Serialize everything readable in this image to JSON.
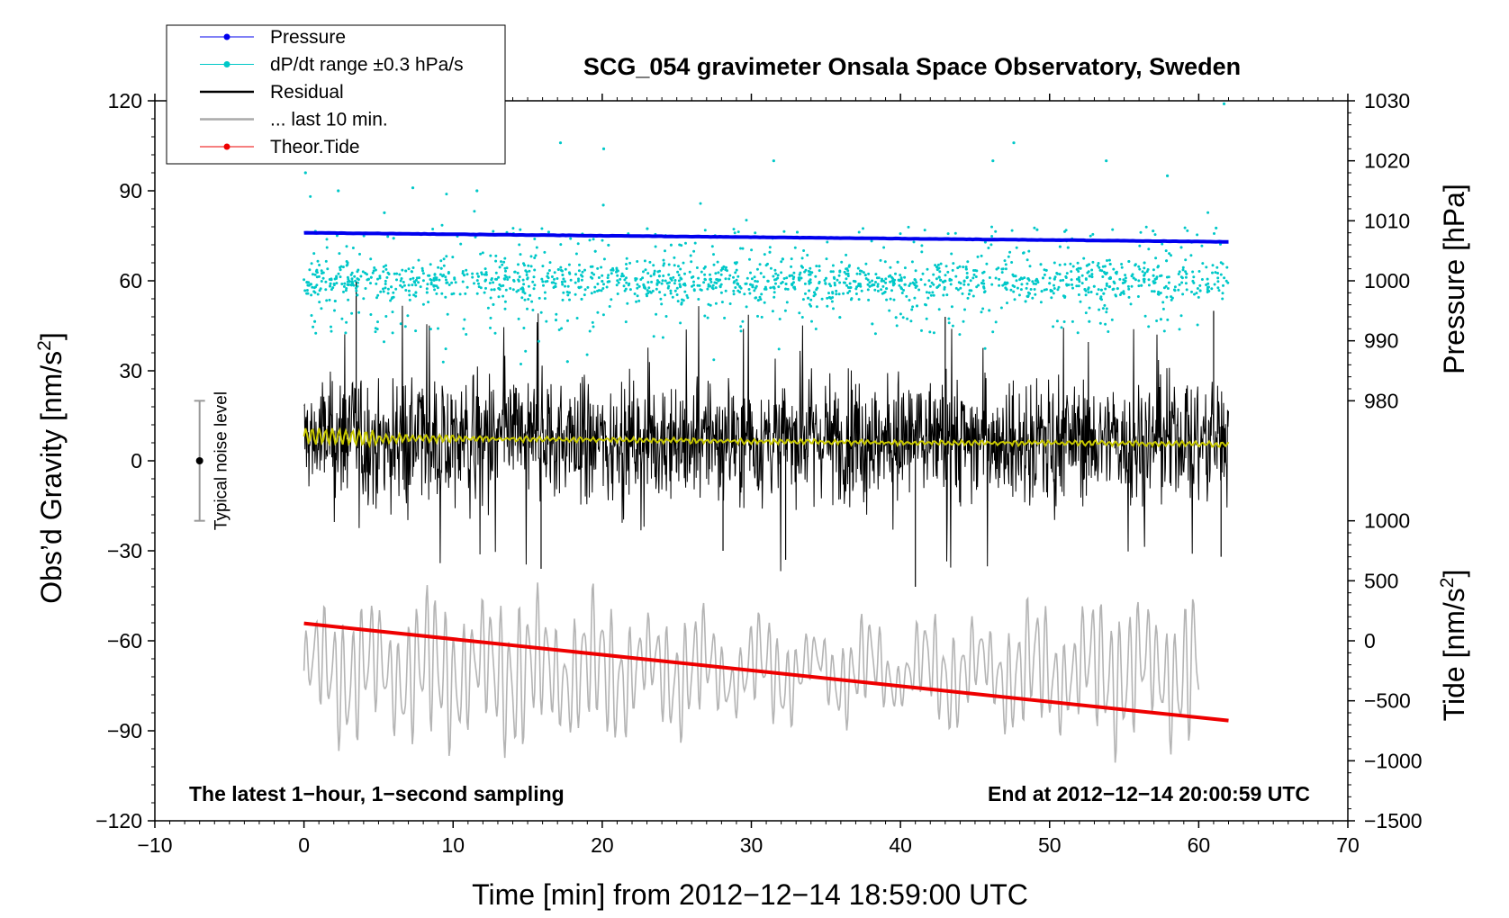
{
  "chart_data": {
    "type": "line",
    "title": "SCG_054 gravimeter Onsala Space Observatory, Sweden",
    "xlabel": "Time [min] from 2012−12−14 18:59:00 UTC",
    "xlim": [
      -10,
      70
    ],
    "xticks": [
      -10,
      0,
      10,
      20,
      30,
      40,
      50,
      60,
      70
    ],
    "xtick_labels": [
      "−10",
      "0",
      "10",
      "20",
      "30",
      "40",
      "50",
      "60",
      "70"
    ],
    "left_axis": {
      "label_main": "Obs’d Gravity [nm/s",
      "label_sup": "2",
      "label_end": "]",
      "ylim": [
        -120,
        120
      ],
      "ticks": [
        -120,
        -90,
        -60,
        -30,
        0,
        30,
        60,
        90,
        120
      ],
      "tick_labels": [
        "−120",
        "−90",
        "−60",
        "−30",
        "0",
        "30",
        "60",
        "90",
        "120"
      ]
    },
    "pressure_axis": {
      "label": "Pressure [hPa]",
      "ticks": [
        980,
        990,
        1000,
        1010,
        1020,
        1030
      ],
      "tick_labels": [
        "980",
        "990",
        "1000",
        "1010",
        "1020",
        "1030"
      ],
      "left_units_at_980": 20,
      "left_units_per_hpa": 2
    },
    "tide_axis": {
      "label_main": "Tide [nm/s",
      "label_sup": "2",
      "label_end": "]",
      "ticks": [
        -1500,
        -1000,
        -500,
        0,
        500,
        1000
      ],
      "tick_labels": [
        "−1500",
        "−1000",
        "−500",
        "0",
        "500",
        "1000"
      ],
      "left_units_at_0": -60,
      "left_units_per_500": 20
    },
    "series": [
      {
        "name": "Pressure",
        "color": "#0000ee",
        "type": "line",
        "axis": "pressure",
        "x": [
          0,
          62
        ],
        "values": [
          1008.0,
          1006.5
        ]
      },
      {
        "name": "dP/dt range ±0.3 hPa/s",
        "color": "#00c8c8",
        "type": "scatter",
        "axis": "left",
        "center": 60,
        "spread": 18,
        "x_range": [
          0,
          62
        ],
        "count": 1800,
        "outliers": [
          [
            17.2,
            106
          ],
          [
            20.1,
            104
          ],
          [
            31.5,
            100
          ],
          [
            47.6,
            106
          ],
          [
            46.2,
            100
          ],
          [
            53.8,
            100
          ],
          [
            57.9,
            95
          ],
          [
            61.7,
            119
          ],
          [
            2.3,
            90
          ],
          [
            7.3,
            91
          ],
          [
            11.6,
            90
          ],
          [
            0.1,
            96
          ]
        ]
      },
      {
        "name": "Residual",
        "color": "#000000",
        "type": "line",
        "axis": "left",
        "center": 7,
        "amplitude": 15,
        "x_range": [
          0,
          62
        ],
        "count": 1860,
        "spikes": [
          [
            3.5,
            60
          ],
          [
            41,
            -42
          ],
          [
            43,
            48
          ],
          [
            61,
            50
          ],
          [
            15.9,
            -36
          ],
          [
            32.3,
            -33
          ],
          [
            28.1,
            -30
          ],
          [
            61.5,
            -32
          ]
        ]
      },
      {
        "name": "... last 10 min.",
        "color": "#b4b4b4",
        "type": "line",
        "axis": "left",
        "center": -70,
        "amplitude": 18,
        "x_range": [
          0,
          60
        ]
      },
      {
        "name": "Yellow smooth",
        "color": "#c8c800",
        "type": "line",
        "axis": "left",
        "x": [
          0,
          2,
          4,
          6,
          10,
          20,
          30,
          40,
          50,
          62
        ],
        "values": [
          8.5,
          8,
          7.5,
          7.5,
          7.5,
          7,
          6.5,
          6,
          6,
          5.5
        ]
      },
      {
        "name": "Theor.Tide",
        "color": "#ee0000",
        "type": "line",
        "axis": "tide",
        "x": [
          0,
          62
        ],
        "values": [
          145,
          -665
        ]
      }
    ],
    "noise_level": {
      "label": "Typical noise level",
      "x": -7,
      "center": 0,
      "half_range": 20
    },
    "annotations": {
      "left": "The latest 1−hour, 1−second sampling",
      "right": "End at 2012−12−14 20:00:59 UTC"
    },
    "legend": [
      {
        "label": "Pressure",
        "color": "#0000ee",
        "marker": true
      },
      {
        "label": "dP/dt range ±0.3 hPa/s",
        "color": "#00c8c8",
        "marker": true
      },
      {
        "label": "Residual",
        "color": "#000000",
        "marker": false
      },
      {
        "label": "... last 10 min.",
        "color": "#aaaaaa",
        "marker": false
      },
      {
        "label": "Theor.Tide",
        "color": "#ee0000",
        "marker": true
      }
    ]
  }
}
